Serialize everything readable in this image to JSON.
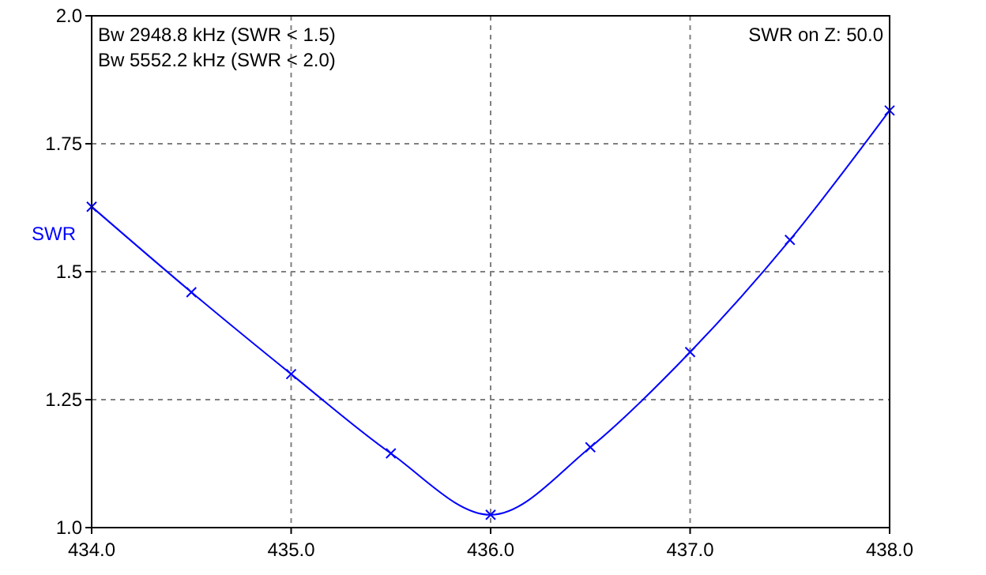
{
  "chart_data": {
    "type": "line",
    "ylabel": "SWR",
    "annotations": [
      "Bw 2948.8 kHz (SWR < 1.5)",
      "Bw 5552.2 kHz (SWR < 2.0)",
      "SWR on Z: 50.0"
    ],
    "x": [
      434.0,
      434.5,
      435.0,
      435.5,
      436.0,
      436.5,
      437.0,
      437.5,
      438.0
    ],
    "series": [
      {
        "color": "#0000ff",
        "values": [
          1.627,
          1.46,
          1.3,
          1.145,
          1.025,
          1.157,
          1.343,
          1.562,
          1.815
        ]
      }
    ],
    "xlim": [
      434.0,
      438.0
    ],
    "xticks": [
      {
        "value": 434,
        "label": "434.0"
      },
      {
        "value": 435,
        "label": "435.0"
      },
      {
        "value": 436,
        "label": "436.0"
      },
      {
        "value": 437,
        "label": "437.0"
      },
      {
        "value": 438,
        "label": "438.0"
      }
    ],
    "ylim": [
      1.0,
      2.0
    ],
    "yticks": [
      {
        "value": 1,
        "label": "1.0"
      },
      1.25,
      {
        "value": 1.5,
        "label": "1.5"
      },
      1.75,
      {
        "value": 2,
        "label": "2.0"
      }
    ],
    "grid": true,
    "marker": "cross",
    "line_style": "solid"
  }
}
